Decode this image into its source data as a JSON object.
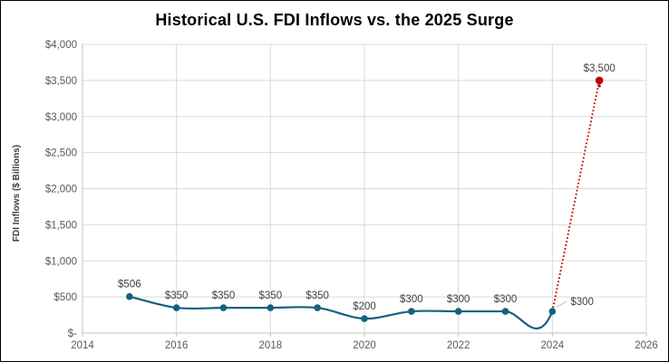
{
  "chart_data": {
    "type": "line",
    "title": "Historical U.S. FDI Inflows vs. the 2025 Surge",
    "xlabel": "",
    "ylabel": "FDI Inflows ($ Billions)",
    "xlim": [
      2014,
      2026
    ],
    "ylim": [
      0,
      4000
    ],
    "x_step": 2,
    "y_step": 500,
    "grid": true,
    "legend": "none",
    "x_ticks": [
      "2014",
      "2016",
      "2018",
      "2020",
      "2022",
      "2024",
      "2026"
    ],
    "y_ticks": [
      "$4,000",
      "$3,500",
      "$3,000",
      "$2,500",
      "$2,000",
      "$1,500",
      "$1,000",
      "$500",
      "$-"
    ],
    "series": [
      {
        "name": "historical-fdi-inflows",
        "color": "#156082",
        "line_style": "solid",
        "smooth": true,
        "points": [
          {
            "x": 2015,
            "y": 506,
            "label": "$506",
            "label_pos": "above"
          },
          {
            "x": 2016,
            "y": 350,
            "label": "$350",
            "label_pos": "above"
          },
          {
            "x": 2017,
            "y": 350,
            "label": "$350",
            "label_pos": "above"
          },
          {
            "x": 2018,
            "y": 350,
            "label": "$350",
            "label_pos": "above"
          },
          {
            "x": 2019,
            "y": 350,
            "label": "$350",
            "label_pos": "above"
          },
          {
            "x": 2020,
            "y": 200,
            "label": "$200",
            "label_pos": "above"
          },
          {
            "x": 2021,
            "y": 300,
            "label": "$300",
            "label_pos": "above"
          },
          {
            "x": 2022,
            "y": 300,
            "label": "$300",
            "label_pos": "above"
          },
          {
            "x": 2023,
            "y": 300,
            "label": "$300",
            "label_pos": "above"
          },
          {
            "x": 2024,
            "y": 300,
            "label": "$300",
            "label_pos": "right-leader"
          }
        ]
      },
      {
        "name": "surge-2025-projection",
        "color": "#C00000",
        "line_style": "dotted",
        "smooth": false,
        "points": [
          {
            "x": 2024,
            "y": 300,
            "label": "",
            "marker": false
          },
          {
            "x": 2025,
            "y": 3500,
            "label": "$3,500",
            "label_pos": "above"
          }
        ]
      }
    ],
    "style": {
      "gridline_color": "#D9D9D9",
      "axis_color": "#BFBFBF",
      "tick_label_color": "#595959",
      "data_label_color": "#404040",
      "leader_line_color": "#BFBFBF"
    }
  }
}
